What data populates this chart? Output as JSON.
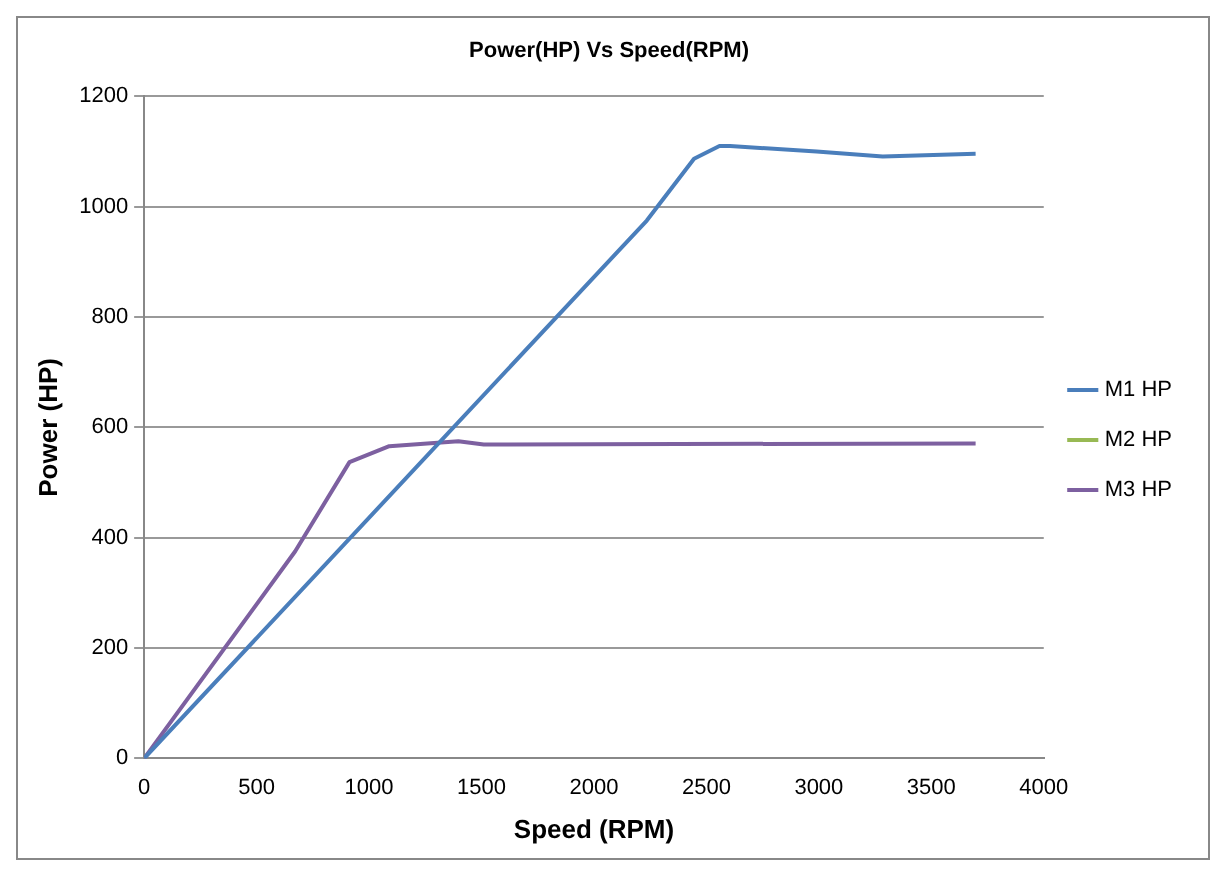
{
  "chart_data": {
    "type": "line",
    "title": "Power(HP) Vs Speed(RPM)",
    "xlabel": "Speed (RPM)",
    "ylabel": "Power (HP)",
    "xlim": [
      0,
      4000
    ],
    "xticks": [
      0,
      500,
      1000,
      1500,
      2000,
      2500,
      3000,
      3500,
      4000
    ],
    "ylim": [
      0,
      1200
    ],
    "yticks": [
      0,
      200,
      400,
      600,
      800,
      1000,
      1200
    ],
    "grid": "y",
    "legend": "right",
    "marker": "none",
    "line_style": "solid",
    "series": [
      {
        "name": "M1 HP",
        "color": "#4a7ebb",
        "x": [
          0,
          2235,
          2445,
          2558,
          2605,
          2990,
          3284,
          3697
        ],
        "values": [
          0,
          975,
          1087,
          1110,
          1110,
          1100,
          1091,
          1096
        ]
      },
      {
        "name": "M2 HP",
        "color": "#98b954"
      },
      {
        "name": "M3 HP",
        "color": "#7d60a0",
        "x": [
          0,
          671,
          913,
          1090,
          1397,
          1510,
          3697
        ],
        "values": [
          0,
          375,
          537,
          566,
          575,
          569,
          571
        ]
      }
    ]
  }
}
